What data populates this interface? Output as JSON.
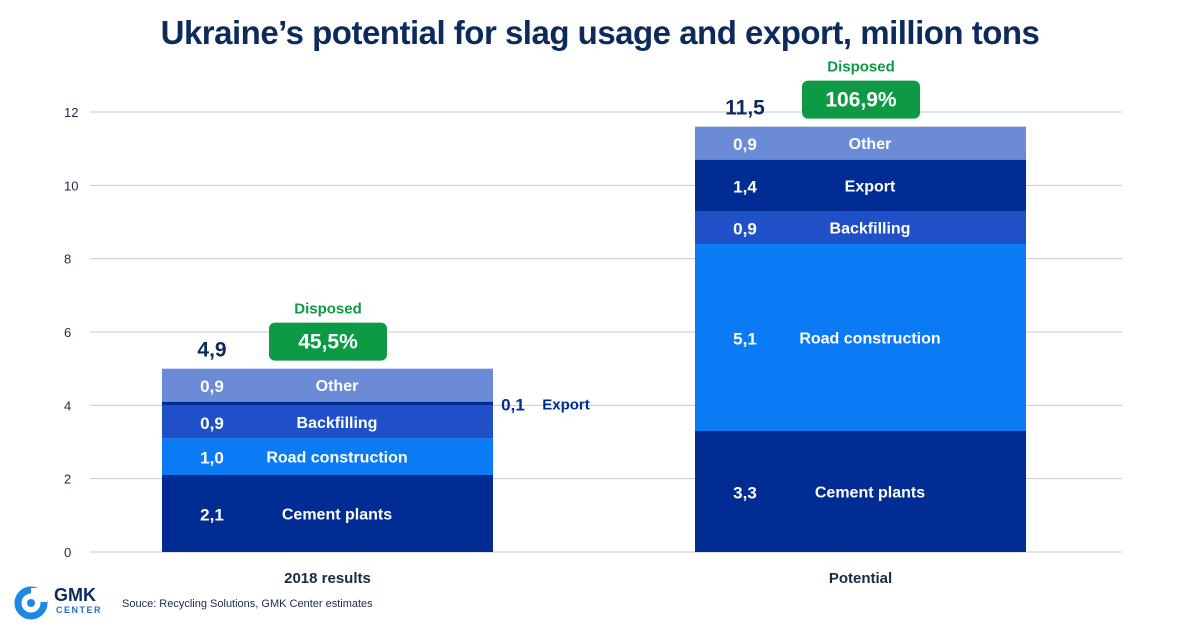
{
  "title": "Ukraine’s potential for slag usage and export, million tons",
  "source": "Souce: Recycling Solutions, GMK Center estimates",
  "logo": {
    "name": "GMK",
    "sub": "CENTER"
  },
  "colors": {
    "cement": "#002c94",
    "road": "#0a7bf5",
    "backfilling": "#1f50c8",
    "export": "#002c94",
    "other": "#6b8bd6",
    "disposed": "#0e9a45",
    "title": "#0d2a5c"
  },
  "chart_data": {
    "type": "bar",
    "stacked": true,
    "ylim": [
      0,
      12
    ],
    "yticks": [
      "0",
      "2",
      "4",
      "6",
      "8",
      "10",
      "12"
    ],
    "grid": true,
    "categories": [
      "2018 results",
      "Potential"
    ],
    "series": [
      {
        "name": "Cement plants",
        "values": [
          2.1,
          3.3
        ],
        "labels": [
          "2,1",
          "3,3"
        ]
      },
      {
        "name": "Road construction",
        "values": [
          1.0,
          5.1
        ],
        "labels": [
          "1,0",
          "5,1"
        ]
      },
      {
        "name": "Backfilling",
        "values": [
          0.9,
          0.9
        ],
        "labels": [
          "0,9",
          "0,9"
        ]
      },
      {
        "name": "Export",
        "values": [
          0.1,
          1.4
        ],
        "labels": [
          "0,1",
          "1,4"
        ]
      },
      {
        "name": "Other",
        "values": [
          0.9,
          0.9
        ],
        "labels": [
          "0,9",
          "0,9"
        ]
      }
    ],
    "totals": [
      "4,9",
      "11,5"
    ],
    "disposed_label": "Disposed",
    "disposed": [
      "45,5%",
      "106,9%"
    ]
  }
}
